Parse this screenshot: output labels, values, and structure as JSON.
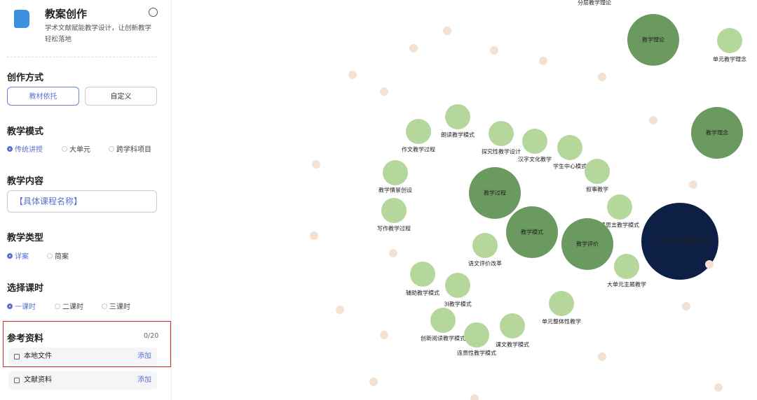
{
  "header": {
    "title": "教案创作",
    "description": "学术文献赋能教学设计，让创新教学轻松落地"
  },
  "creation_mode": {
    "label": "创作方式",
    "options": [
      "教材依托",
      "自定义"
    ]
  },
  "teaching_mode": {
    "label": "教学模式",
    "options": [
      "传统讲授",
      "大单元",
      "跨学科项目"
    ]
  },
  "teaching_content": {
    "label": "教学内容",
    "placeholder": "【具体课程名称】"
  },
  "teaching_type": {
    "label": "教学类型",
    "options": [
      "详案",
      "简案"
    ]
  },
  "class_hours": {
    "label": "选择课时",
    "options": [
      "一课时",
      "二课时",
      "三课时"
    ]
  },
  "references": {
    "label": "参考资料",
    "count": "0/20",
    "items": [
      {
        "name": "本地文件",
        "action": "添加"
      },
      {
        "name": "文献资料",
        "action": "添加"
      }
    ]
  },
  "graph": {
    "nodes": [
      {
        "label": "分层教学理论"
      },
      {
        "label": "教学理论"
      },
      {
        "label": "单元教学理念"
      },
      {
        "label": "教学理念"
      },
      {
        "label": "朗读教学模式"
      },
      {
        "label": "作文教学过程"
      },
      {
        "label": "探究性教学设计"
      },
      {
        "label": "汉字文化教学"
      },
      {
        "label": "学生中心模式"
      },
      {
        "label": "教学情景创设"
      },
      {
        "label": "叙事教学"
      },
      {
        "label": "教学过程"
      },
      {
        "label": "写作教学过程"
      },
      {
        "label": "读思言教学模式"
      },
      {
        "label": "教学模式"
      },
      {
        "label": "教学评价"
      },
      {
        "label": "1 小蝌蚪找妈妈"
      },
      {
        "label": "语文评价改革"
      },
      {
        "label": "大单元主题教学"
      },
      {
        "label": "辅助教学模式"
      },
      {
        "label": "3I教学模式"
      },
      {
        "label": "单元整体性教学"
      },
      {
        "label": "创新阅读教学模式"
      },
      {
        "label": "课文教学模式"
      },
      {
        "label": "连贯性教学模式"
      }
    ]
  }
}
